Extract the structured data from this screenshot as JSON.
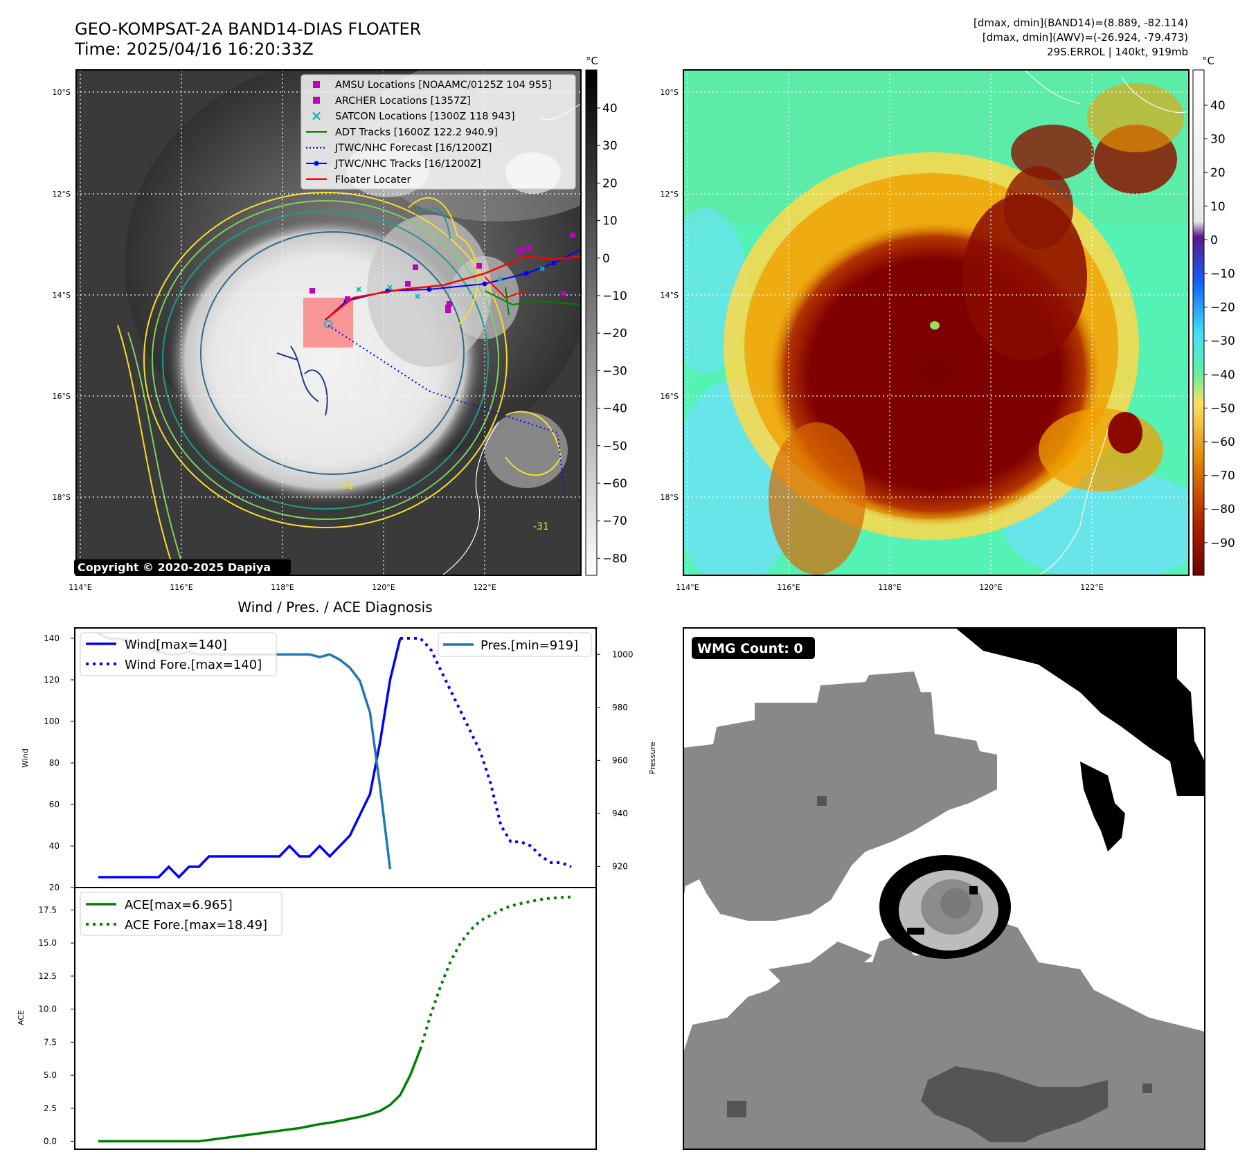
{
  "header": {
    "title_line1": "GEO-KOMPSAT-2A BAND14-DIAS FLOATER",
    "title_line2": "Time: 2025/04/16 16:20:33Z",
    "stats_line1": "[dmax, dmin](BAND14)=(8.889, -82.114)",
    "stats_line2": "[dmax, dmin](AWV)=(-26.924, -79.473)",
    "stats_line3": "29S.ERROL | 140kt, 919mb"
  },
  "maps": {
    "lon_ticks": [
      "114°E",
      "116°E",
      "118°E",
      "120°E",
      "122°E"
    ],
    "lat_ticks": [
      "10°S",
      "12°S",
      "14°S",
      "16°S",
      "18°S"
    ],
    "copyright": "Copyright © 2020-2025 Dapiya",
    "contour_label_a": "-31",
    "contour_label_b": "-31",
    "colorbar_unit": "°C",
    "colorbar_left_ticks": [
      "40",
      "30",
      "20",
      "10",
      "0",
      "−10",
      "−20",
      "−30",
      "−40",
      "−50",
      "−60",
      "−70",
      "−80"
    ],
    "colorbar_right_ticks": [
      "40",
      "30",
      "20",
      "10",
      "0",
      "−10",
      "−20",
      "−30",
      "−40",
      "−50",
      "−60",
      "−70",
      "−80",
      "−90"
    ],
    "legend": [
      {
        "label": "AMSU Locations [NOAAMC/0125Z 104 955]",
        "color": "#c000c0",
        "kind": "square"
      },
      {
        "label": "ARCHER Locations [1357Z]",
        "color": "#c000c0",
        "kind": "square"
      },
      {
        "label": "SATCON Locations [1300Z 118 943]",
        "color": "#17b5b5",
        "kind": "x"
      },
      {
        "label": "ADT Tracks [1600Z 122.2 940.9]",
        "color": "#008000",
        "kind": "line"
      },
      {
        "label": "JTWC/NHC Forecast [16/1200Z]",
        "color": "#0000ff",
        "kind": "dotted"
      },
      {
        "label": "JTWC/NHC Tracks [16/1200Z]",
        "color": "#0000ff",
        "kind": "linedot"
      },
      {
        "label": "Floater Locater",
        "color": "#ff0000",
        "kind": "line"
      }
    ]
  },
  "diagnosis": {
    "title": "Wind / Pres. / ACE Diagnosis",
    "wind_ylabel": "Wind",
    "pres_ylabel": "Pressure",
    "ace_ylabel": "ACE",
    "wind_legend": [
      "Wind[max=140]",
      "Wind Fore.[max=140]"
    ],
    "pres_legend": "Pres.[min=919]",
    "ace_legend": [
      "ACE[max=6.965]",
      "ACE Fore.[max=18.49]"
    ],
    "wind_ticks": [
      "20",
      "40",
      "60",
      "80",
      "100",
      "120",
      "140"
    ],
    "pres_ticks": [
      "920",
      "940",
      "960",
      "980",
      "1000"
    ],
    "ace_ticks": [
      "0.0",
      "2.5",
      "5.0",
      "7.5",
      "10.0",
      "12.5",
      "15.0",
      "17.5"
    ]
  },
  "wmg": {
    "label": "WMG Count: 0"
  },
  "chart_data": {
    "type": "line",
    "title": "Wind / Pres. / ACE Diagnosis",
    "x_index_range": [
      0,
      47
    ],
    "wind": {
      "ylim": [
        20,
        145
      ],
      "observed": [
        25,
        25,
        25,
        25,
        25,
        25,
        25,
        30,
        25,
        30,
        30,
        35,
        35,
        35,
        35,
        35,
        35,
        35,
        35,
        40,
        35,
        35,
        40,
        35,
        40,
        45,
        55,
        65,
        90,
        120,
        140
      ],
      "forecast_x": [
        30,
        31,
        32,
        33,
        34,
        35,
        36,
        37,
        38,
        39,
        40,
        41,
        42,
        43,
        44,
        45,
        46,
        47
      ],
      "forecast": [
        140,
        140,
        140,
        135,
        125,
        115,
        105,
        95,
        85,
        70,
        50,
        42,
        42,
        40,
        35,
        32,
        32,
        30
      ]
    },
    "pressure": {
      "ylim": [
        912,
        1010
      ],
      "observed": [
        1008,
        1006,
        1006,
        1005,
        1004,
        1002,
        1001,
        1000,
        1000,
        1001,
        1000,
        1000,
        1000,
        1000,
        1000,
        1000,
        1000,
        1000,
        1000,
        1000,
        1000,
        1000,
        999,
        1000,
        998,
        995,
        990,
        978,
        950,
        919
      ]
    },
    "ace": {
      "ylim": [
        -0.6,
        19.2
      ],
      "observed": [
        0,
        0,
        0,
        0,
        0,
        0,
        0,
        0,
        0,
        0,
        0,
        0.1,
        0.2,
        0.3,
        0.4,
        0.5,
        0.6,
        0.7,
        0.8,
        0.9,
        1.0,
        1.15,
        1.3,
        1.4,
        1.55,
        1.7,
        1.85,
        2.05,
        2.3,
        2.75,
        3.5,
        5.0,
        6.965
      ],
      "forecast_x": [
        32,
        33,
        34,
        35,
        36,
        37,
        38,
        39,
        40,
        41,
        42,
        43,
        44,
        45,
        46,
        47
      ],
      "forecast": [
        6.965,
        9.5,
        11.7,
        13.6,
        15.0,
        16.0,
        16.7,
        17.1,
        17.5,
        17.8,
        18.0,
        18.15,
        18.3,
        18.4,
        18.45,
        18.49
      ]
    }
  }
}
